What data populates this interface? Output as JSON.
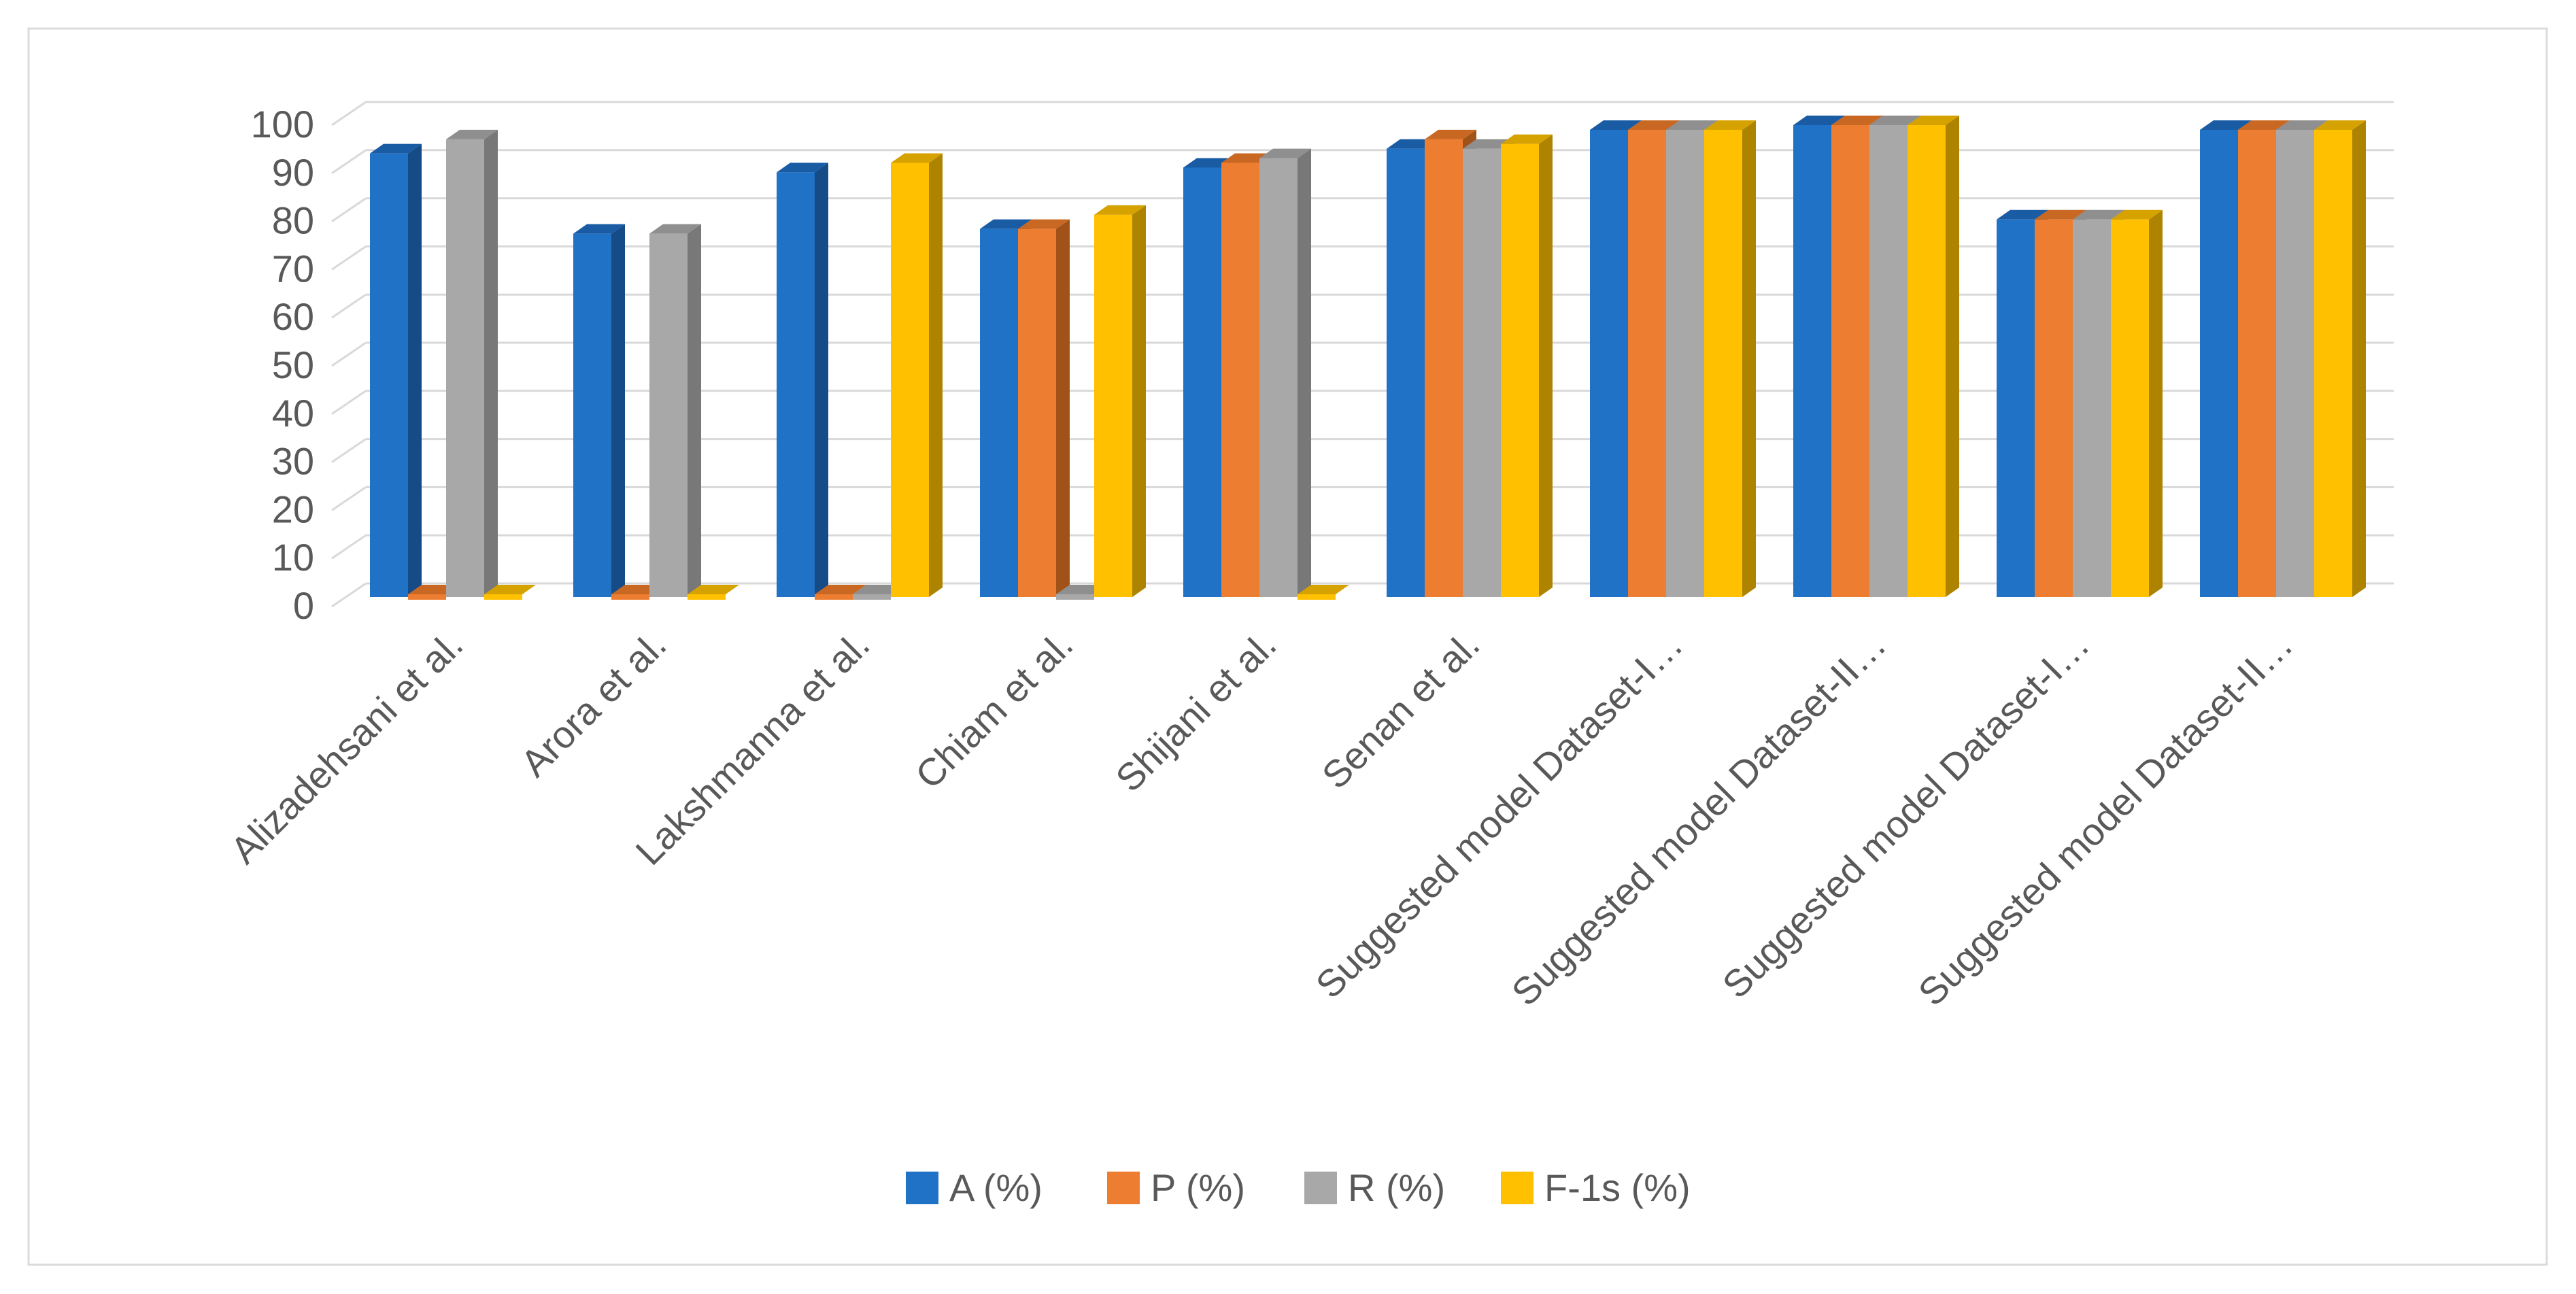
{
  "frame": {
    "background": "#FFFFFF",
    "border_color": "#DBDBDB"
  },
  "chart_data": {
    "type": "bar",
    "style": "3d-clustered-column",
    "title": "",
    "xlabel": "",
    "ylabel": "",
    "ylim": [
      0,
      100
    ],
    "ytick_step": 10,
    "yticks": [
      0,
      10,
      20,
      30,
      40,
      50,
      60,
      70,
      80,
      90,
      100
    ],
    "grid": true,
    "gridline_color": "#D9D9D9",
    "axis_text_color": "#595959",
    "legend_position": "bottom",
    "categories": [
      "Alizadehsani et al.",
      "Arora et al.",
      "Lakshmanna et al.",
      "Chiam et al.",
      "Shijani et al.",
      "Senan et al.",
      "Suggested model Dataset-I…",
      "Suggested model Dataset-II…",
      "Suggested model Dataset-I…",
      "Suggested model Dataset-II…"
    ],
    "series": [
      {
        "name": "A (%)",
        "color_front": "#1F72C6",
        "color_top": "#1A5CA4",
        "color_side": "#154B86",
        "values": [
          94,
          77,
          90,
          78,
          91,
          95,
          99,
          100,
          80,
          99
        ]
      },
      {
        "name": "P (%)",
        "color_front": "#ED7D31",
        "color_top": "#C96823",
        "color_side": "#A05218",
        "values": [
          0,
          0,
          0,
          78,
          92,
          97,
          99,
          100,
          80,
          99
        ]
      },
      {
        "name": "R (%)",
        "color_front": "#A8A8A8",
        "color_top": "#8F8F8F",
        "color_side": "#787878",
        "values": [
          97,
          77,
          0,
          0,
          93,
          95,
          99,
          100,
          80,
          99
        ]
      },
      {
        "name": "F-1s (%)",
        "color_front": "#FFC000",
        "color_top": "#D6A200",
        "color_side": "#AD8300",
        "values": [
          0,
          0,
          92,
          81,
          0,
          96,
          99,
          100,
          80,
          99
        ]
      }
    ]
  },
  "legend": {
    "items": [
      {
        "label": "A (%)"
      },
      {
        "label": "P (%)"
      },
      {
        "label": "R (%)"
      },
      {
        "label": "F-1s (%)"
      }
    ]
  }
}
